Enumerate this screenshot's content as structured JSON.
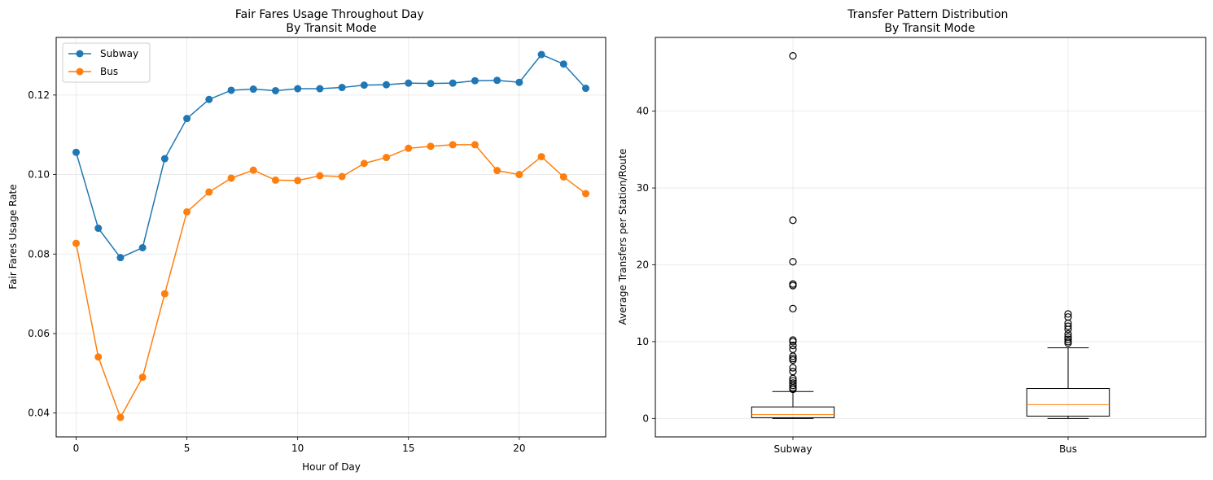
{
  "chart_data": [
    {
      "type": "line",
      "title": "Fair Fares Usage Throughout Day\nBy Transit Mode",
      "xlabel": "Hour of Day",
      "ylabel": "Fair Fares Usage Rate",
      "xlim": [
        -0.9,
        23.9
      ],
      "ylim": [
        0.034,
        0.1345
      ],
      "xticks": [
        0,
        5,
        10,
        15,
        20
      ],
      "yticks": [
        0.04,
        0.06,
        0.08,
        0.1,
        0.12
      ],
      "ytick_labels": [
        "0.04",
        "0.06",
        "0.08",
        "0.10",
        "0.12"
      ],
      "grid": true,
      "legend": "upper left",
      "x": [
        0,
        1,
        2,
        3,
        4,
        5,
        6,
        7,
        8,
        9,
        10,
        11,
        12,
        13,
        14,
        15,
        16,
        17,
        18,
        19,
        20,
        21,
        22,
        23
      ],
      "series": [
        {
          "name": "Subway",
          "color": "#1f77b4",
          "values": [
            0.1056,
            0.0865,
            0.0791,
            0.0816,
            0.104,
            0.1141,
            0.1189,
            0.1212,
            0.1215,
            0.1211,
            0.1216,
            0.1216,
            0.1219,
            0.1225,
            0.1226,
            0.123,
            0.1229,
            0.123,
            0.1236,
            0.1237,
            0.1232,
            0.1302,
            0.1278,
            0.1217
          ]
        },
        {
          "name": "Bus",
          "color": "#ff7f0e",
          "values": [
            0.0827,
            0.0541,
            0.0389,
            0.049,
            0.07,
            0.0906,
            0.0956,
            0.0991,
            0.1011,
            0.0986,
            0.0985,
            0.0997,
            0.0995,
            0.1028,
            0.1043,
            0.1066,
            0.1071,
            0.1075,
            0.1075,
            0.101,
            0.1,
            0.1045,
            0.0994,
            0.0952
          ]
        }
      ]
    },
    {
      "type": "box",
      "title": "Transfer Pattern Distribution\nBy Transit Mode",
      "xlabel": "",
      "ylabel": "Average Transfers per Station/Route",
      "ylim": [
        -2.4,
        49.6
      ],
      "yticks": [
        0,
        10,
        20,
        30,
        40
      ],
      "grid": true,
      "categories": [
        "Subway",
        "Bus"
      ],
      "boxes": [
        {
          "name": "Subway",
          "whisker_low": 0.0,
          "q1": 0.1,
          "median": 0.5,
          "q3": 1.5,
          "whisker_high": 3.5,
          "outliers": [
            47.2,
            25.8,
            20.4,
            17.5,
            17.3,
            14.3,
            10.2,
            10.0,
            9.5,
            9.0,
            8.1,
            7.8,
            7.6,
            6.6,
            6.1,
            5.2,
            4.9,
            4.6,
            4.3,
            4.0,
            3.8
          ]
        },
        {
          "name": "Bus",
          "whisker_low": 0.0,
          "q1": 0.3,
          "median": 1.8,
          "q3": 3.9,
          "whisker_high": 9.2,
          "outliers": [
            13.6,
            13.2,
            12.4,
            12.0,
            11.6,
            11.0,
            10.6,
            10.3,
            10.0,
            9.8
          ]
        }
      ],
      "median_color": "#ff7f0e"
    }
  ]
}
